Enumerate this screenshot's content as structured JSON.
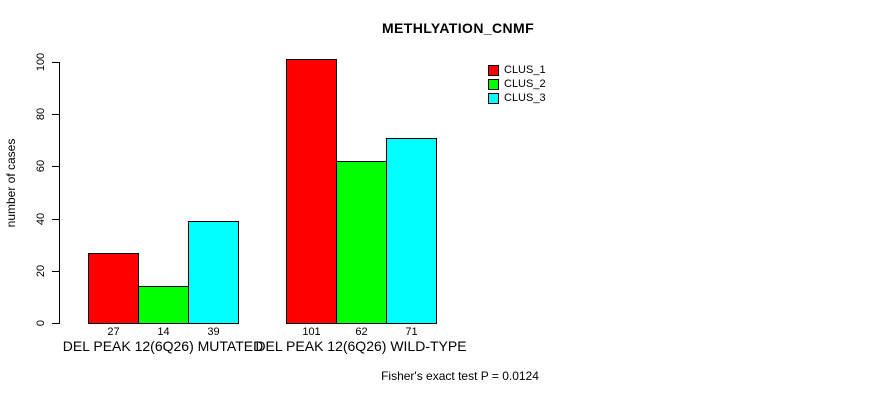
{
  "chart_data": {
    "type": "bar",
    "title": "METHLYATION_CNMF",
    "xlabel": "",
    "ylabel": "number of cases",
    "ylim": [
      0,
      100
    ],
    "yticks": [
      0,
      20,
      40,
      60,
      80,
      100
    ],
    "grid": false,
    "legend_position": "top-right",
    "bar_value_labels_shown": true,
    "categories": [
      "DEL PEAK 12(6Q26) MUTATED",
      "DEL PEAK 12(6Q26) WILD-TYPE"
    ],
    "series": [
      {
        "name": "CLUS_1",
        "color": "#ff0000",
        "values": [
          27,
          101
        ]
      },
      {
        "name": "CLUS_2",
        "color": "#00ff00",
        "values": [
          14,
          62
        ]
      },
      {
        "name": "CLUS_3",
        "color": "#00ffff",
        "values": [
          39,
          71
        ]
      }
    ],
    "annotation": "Fisher's exact test P = 0.0124",
    "bar_border_color": "#000000",
    "background_color": "#ffffff"
  }
}
